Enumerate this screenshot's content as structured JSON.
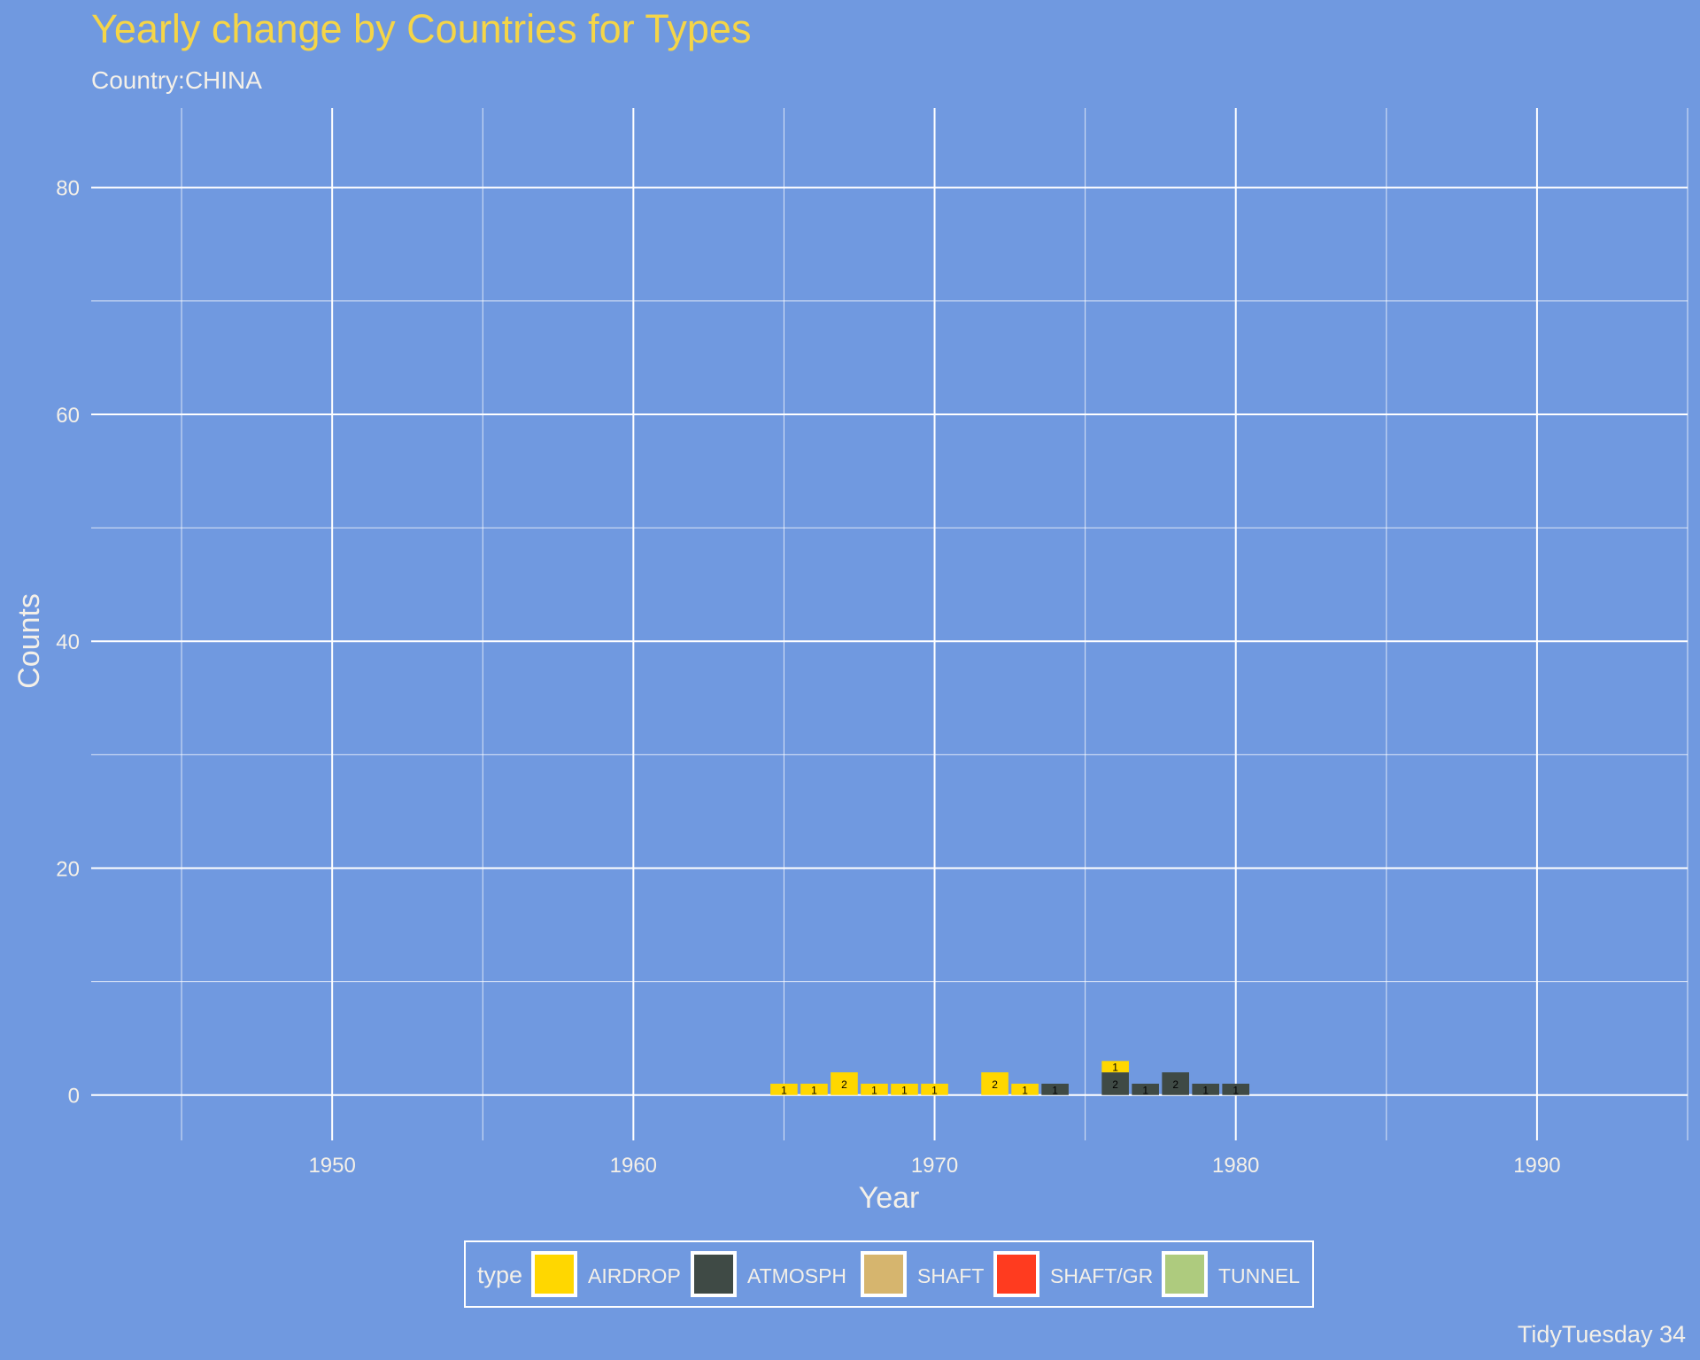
{
  "colors": {
    "background": "#7099e0",
    "title": "#f5d547",
    "text": "#f4f0e8",
    "grid": "#ffffff",
    "bar_text": "#000000"
  },
  "chart_data": {
    "type": "bar",
    "stacked": true,
    "title": "Yearly change by Countries for Types",
    "subtitle": "Country:CHINA",
    "xlabel": "Year",
    "ylabel": "Counts",
    "xlim": [
      1942,
      1995
    ],
    "ylim": [
      -4,
      87
    ],
    "x_ticks": [
      1950,
      1960,
      1970,
      1980,
      1990
    ],
    "y_ticks": [
      0,
      20,
      40,
      60,
      80
    ],
    "grid": true,
    "legend_title": "type",
    "legend_position": "bottom",
    "caption": "TidyTuesday 34",
    "series": [
      {
        "name": "AIRDROP",
        "color": "#ffd700",
        "points": [
          {
            "year": 1965,
            "count": 1
          },
          {
            "year": 1966,
            "count": 1
          },
          {
            "year": 1967,
            "count": 2
          },
          {
            "year": 1968,
            "count": 1
          },
          {
            "year": 1969,
            "count": 1
          },
          {
            "year": 1970,
            "count": 1
          },
          {
            "year": 1972,
            "count": 2
          },
          {
            "year": 1973,
            "count": 1
          },
          {
            "year": 1976,
            "count": 1
          }
        ]
      },
      {
        "name": "ATMOSPH",
        "color": "#3f4a45",
        "points": [
          {
            "year": 1974,
            "count": 1
          },
          {
            "year": 1976,
            "count": 2
          },
          {
            "year": 1977,
            "count": 1
          },
          {
            "year": 1978,
            "count": 2
          },
          {
            "year": 1979,
            "count": 1
          },
          {
            "year": 1980,
            "count": 1
          }
        ]
      },
      {
        "name": "SHAFT",
        "color": "#d6b56e",
        "points": []
      },
      {
        "name": "SHAFT/GR",
        "color": "#ff3b1f",
        "points": []
      },
      {
        "name": "TUNNEL",
        "color": "#aecb7e",
        "points": []
      }
    ]
  }
}
